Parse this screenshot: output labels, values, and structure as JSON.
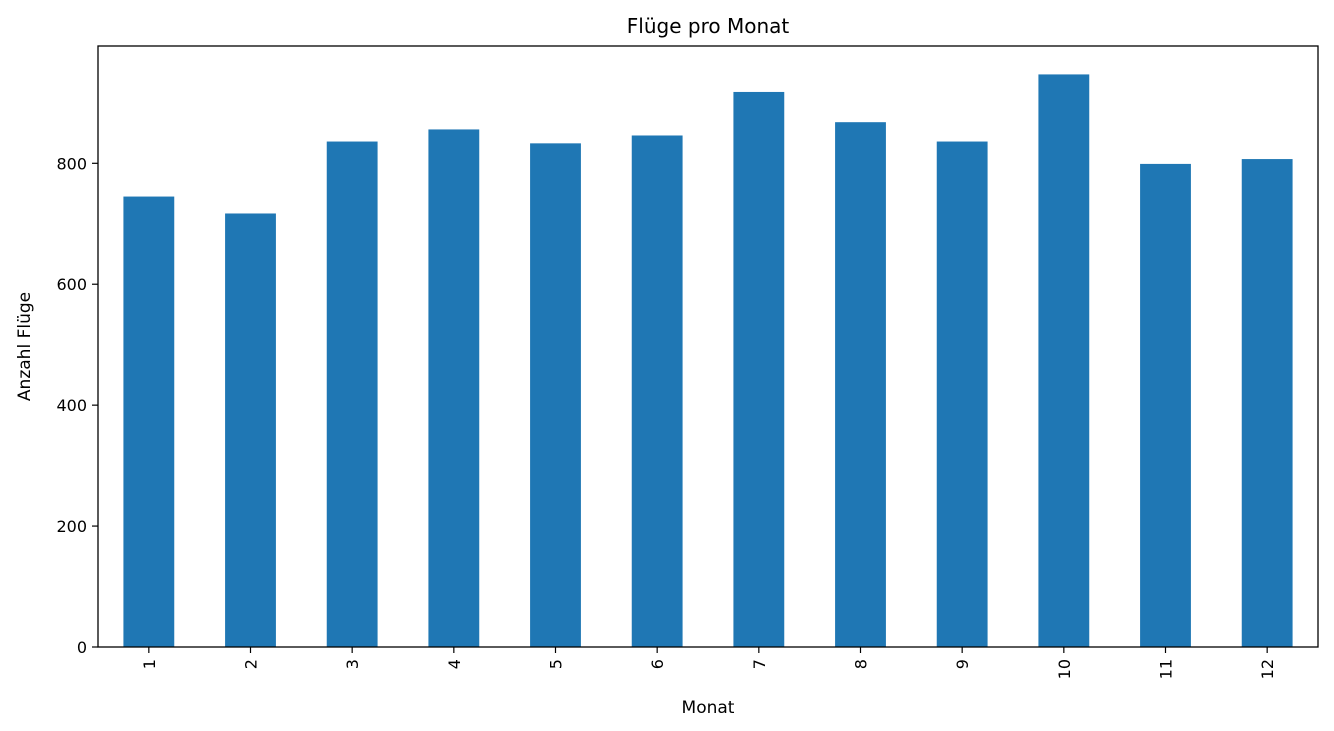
{
  "chart_data": {
    "type": "bar",
    "title": "Flüge pro Monat",
    "xlabel": "Monat",
    "ylabel": "Anzahl Flüge",
    "categories": [
      "1",
      "2",
      "3",
      "4",
      "5",
      "6",
      "7",
      "8",
      "9",
      "10",
      "11",
      "12"
    ],
    "values": [
      745,
      717,
      836,
      856,
      833,
      846,
      918,
      868,
      836,
      947,
      799,
      807
    ],
    "yticks": [
      0,
      200,
      400,
      600,
      800
    ],
    "ylim": [
      0,
      994
    ],
    "color": "#1f77b4",
    "grid": false,
    "legend": "none"
  }
}
